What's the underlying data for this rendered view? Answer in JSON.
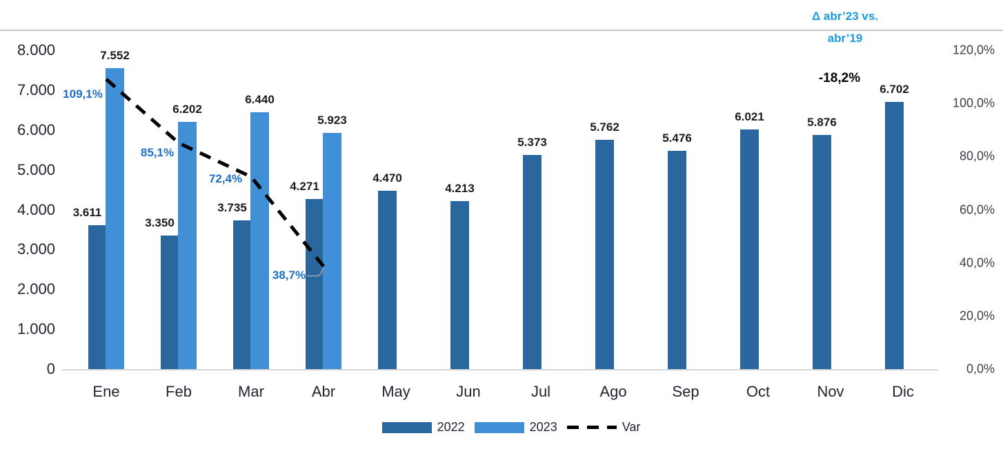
{
  "chart_data": {
    "type": "bar",
    "title": "",
    "categories": [
      "Ene",
      "Feb",
      "Mar",
      "Abr",
      "May",
      "Jun",
      "Jul",
      "Ago",
      "Sep",
      "Oct",
      "Nov",
      "Dic"
    ],
    "series": [
      {
        "name": "2022",
        "color": "#2a679e",
        "values": [
          3611,
          3350,
          3735,
          4271,
          4470,
          4213,
          5373,
          5762,
          5476,
          6021,
          5876,
          6702
        ],
        "labels": [
          "3.611",
          "3.350",
          "3.735",
          "4.271",
          "4.470",
          "4.213",
          "5.373",
          "5.762",
          "5.476",
          "6.021",
          "5.876",
          "6.702"
        ]
      },
      {
        "name": "2023",
        "color": "#4190d7",
        "values": [
          7552,
          6202,
          6440,
          5923
        ],
        "labels": [
          "7.552",
          "6.202",
          "6.440",
          "5.923"
        ]
      }
    ],
    "line_series": {
      "name": "Var",
      "color": "#000000",
      "style": "dashed",
      "values": [
        109.1,
        85.1,
        72.4,
        38.7
      ],
      "labels": [
        "109,1%",
        "85,1%",
        "72,4%",
        "38,7%"
      ],
      "label_color": "#1d6fc4"
    },
    "left_axis": {
      "min": 0,
      "max": 8000,
      "tick_labels": [
        "8.000",
        "7.000",
        "6.000",
        "5.000",
        "4.000",
        "3.000",
        "2.000",
        "1.000",
        "0"
      ]
    },
    "right_axis": {
      "min": 0,
      "max": 120,
      "unit": "%",
      "tick_labels": [
        "120,0%",
        "100,0%",
        "80,0%",
        "60,0%",
        "40,0%",
        "20,0%",
        "0,0%"
      ]
    },
    "annotation": {
      "line1": "Δ abr’23 vs.",
      "line2": "abr’19",
      "value": "-18,2%",
      "title_color": "#189cd9"
    },
    "legend": [
      {
        "label": "2022",
        "swatch": "box",
        "color": "#2a679e"
      },
      {
        "label": "2023",
        "swatch": "box",
        "color": "#4190d7"
      },
      {
        "label": "Var",
        "swatch": "dash",
        "color": "#000000"
      }
    ],
    "grid": "off",
    "legend_position": "bottom"
  }
}
